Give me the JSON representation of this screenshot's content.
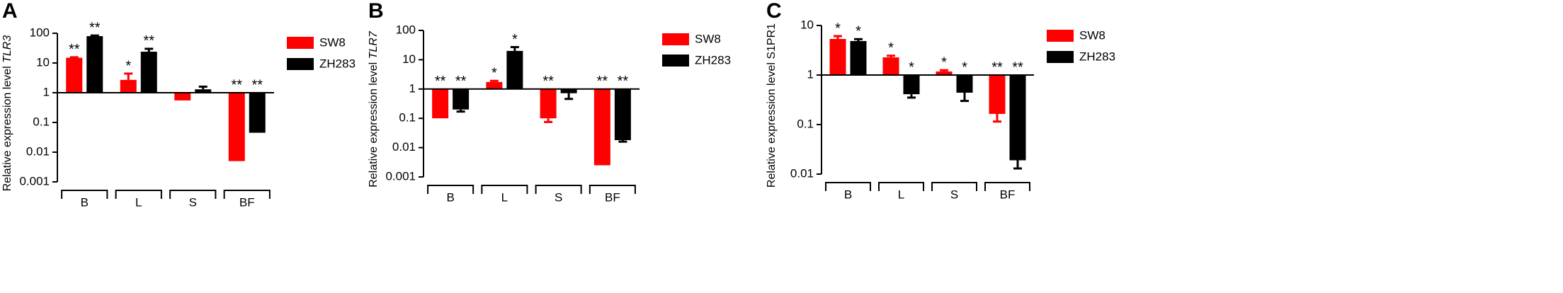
{
  "chart_data": [
    {
      "type": "bar",
      "panel": "A",
      "ylabel": "Relative expression level ",
      "ylabel_gene": "TLR3",
      "ylabel_gene_italic": true,
      "yscale": "log",
      "ylim": [
        0.001,
        100
      ],
      "yticks": [
        0.001,
        0.01,
        0.1,
        1,
        10,
        100
      ],
      "baseline": 1,
      "categories": [
        "B",
        "L",
        "S",
        "BF"
      ],
      "series": [
        {
          "name": "SW8",
          "color": "#ff0000",
          "values": [
            15,
            2.7,
            0.55,
            0.005
          ],
          "errors": [
            0.6,
            1.7,
            null,
            null
          ],
          "annotations": [
            "**",
            "*",
            null,
            "**"
          ]
        },
        {
          "name": "ZH283",
          "color": "#000000",
          "values": [
            80,
            24,
            1.3,
            0.045
          ],
          "errors": [
            4,
            6,
            0.3,
            null
          ],
          "annotations": [
            "**",
            "**",
            null,
            "**"
          ]
        }
      ]
    },
    {
      "type": "bar",
      "panel": "B",
      "ylabel": "Relative expression level ",
      "ylabel_gene": "TLR7",
      "ylabel_gene_italic": true,
      "yscale": "log",
      "ylim": [
        0.001,
        100
      ],
      "yticks": [
        0.001,
        0.01,
        0.1,
        1,
        10,
        100
      ],
      "baseline": 1,
      "categories": [
        "B",
        "L",
        "S",
        "BF"
      ],
      "series": [
        {
          "name": "SW8",
          "color": "#ff0000",
          "values": [
            0.1,
            1.74,
            0.1,
            0.0025
          ],
          "errors": [
            null,
            0.16,
            0.025,
            null
          ],
          "annotations": [
            "**",
            "*",
            "**",
            "**"
          ]
        },
        {
          "name": "ZH283",
          "color": "#000000",
          "values": [
            0.2,
            20,
            0.72,
            0.018
          ],
          "errors": [
            0.03,
            7,
            0.26,
            0.002
          ],
          "annotations": [
            "**",
            "*",
            null,
            "**"
          ]
        }
      ]
    },
    {
      "type": "bar",
      "panel": "C",
      "ylabel": "Relative expression level ",
      "ylabel_gene": "S1PR1",
      "ylabel_gene_italic": false,
      "yscale": "log",
      "ylim": [
        0.01,
        10
      ],
      "yticks": [
        0.01,
        0.1,
        1,
        10
      ],
      "baseline": 1,
      "categories": [
        "B",
        "L",
        "S",
        "BF"
      ],
      "series": [
        {
          "name": "SW8",
          "color": "#ff0000",
          "values": [
            5.35,
            2.27,
            1.18,
            0.164
          ],
          "errors": [
            0.75,
            0.18,
            0.07,
            0.049
          ],
          "annotations": [
            "*",
            "*",
            "*",
            "**"
          ]
        },
        {
          "name": "ZH283",
          "color": "#000000",
          "values": [
            4.85,
            0.41,
            0.44,
            0.019
          ],
          "errors": [
            0.45,
            0.06,
            0.14,
            0.006
          ],
          "annotations": [
            "*",
            "*",
            "*",
            "**"
          ]
        }
      ]
    }
  ]
}
